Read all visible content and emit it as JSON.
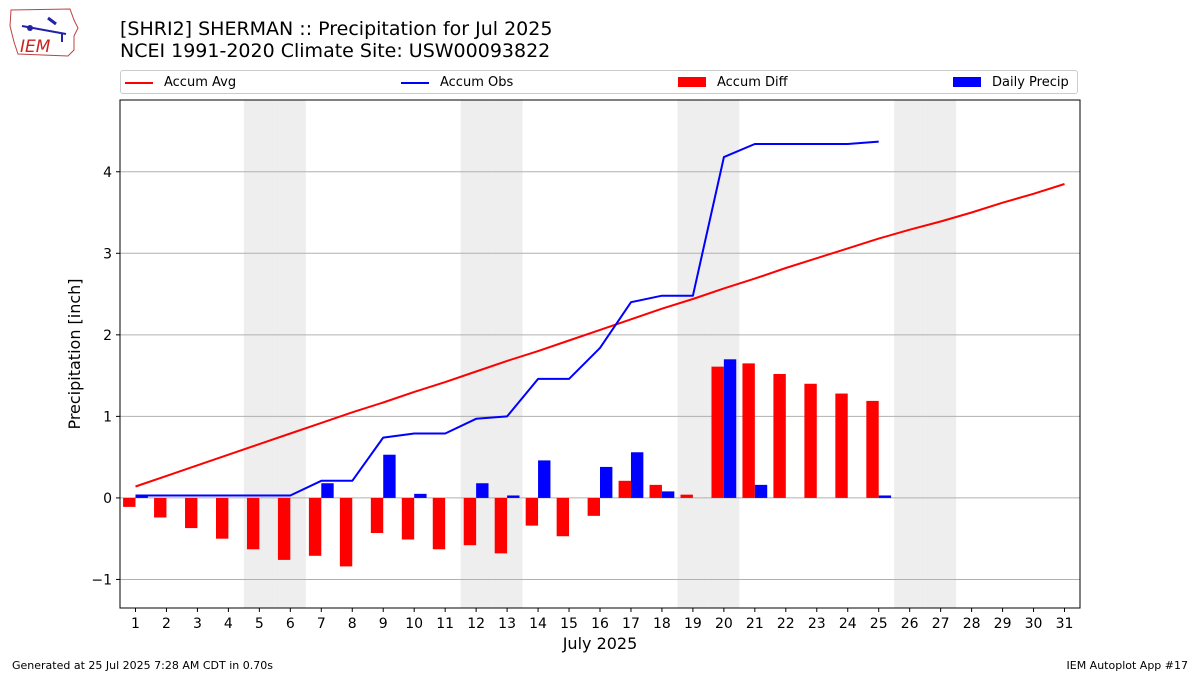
{
  "logo": {
    "text": "IEM"
  },
  "title": {
    "line1": "[SHRI2] SHERMAN :: Precipitation for Jul 2025",
    "line2": "NCEI 1991-2020 Climate Site: USW00093822"
  },
  "legend": {
    "items": [
      {
        "label": "Accum Avg",
        "kind": "line",
        "color": "#ff0000"
      },
      {
        "label": "Accum Obs",
        "kind": "line",
        "color": "#0000ff"
      },
      {
        "label": "Accum Diff",
        "kind": "bar",
        "color": "#ff0000"
      },
      {
        "label": "Daily Precip",
        "kind": "bar",
        "color": "#0000ff"
      }
    ]
  },
  "footer": {
    "left": "Generated at 25 Jul 2025 7:28 AM CDT in 0.70s",
    "right": "IEM Autoplot App #17"
  },
  "chart_data": {
    "type": "bar+line",
    "xlabel": "July 2025",
    "ylabel": "Precipitation [inch]",
    "xlim": [
      0.5,
      31.5
    ],
    "ylim": [
      -1.35,
      4.88
    ],
    "yticks": [
      -1,
      0,
      1,
      2,
      3,
      4
    ],
    "ytick_labels": [
      "−1",
      "0",
      "1",
      "2",
      "3",
      "4"
    ],
    "days": [
      1,
      2,
      3,
      4,
      5,
      6,
      7,
      8,
      9,
      10,
      11,
      12,
      13,
      14,
      15,
      16,
      17,
      18,
      19,
      20,
      21,
      22,
      23,
      24,
      25,
      26,
      27,
      28,
      29,
      30,
      31
    ],
    "weekend_days": [
      5,
      6,
      12,
      13,
      19,
      20,
      26,
      27
    ],
    "grid": "horizontal",
    "series": [
      {
        "name": "Accum Avg",
        "type": "line",
        "color": "#ff0000",
        "x": [
          1,
          2,
          3,
          4,
          5,
          6,
          7,
          8,
          9,
          10,
          11,
          12,
          13,
          14,
          15,
          16,
          17,
          18,
          19,
          20,
          21,
          22,
          23,
          24,
          25,
          26,
          27,
          28,
          29,
          30,
          31
        ],
        "values": [
          0.14,
          0.27,
          0.4,
          0.53,
          0.66,
          0.79,
          0.92,
          1.05,
          1.17,
          1.3,
          1.42,
          1.55,
          1.68,
          1.8,
          1.93,
          2.06,
          2.19,
          2.32,
          2.44,
          2.57,
          2.69,
          2.82,
          2.94,
          3.06,
          3.18,
          3.29,
          3.39,
          3.5,
          3.62,
          3.73,
          3.85
        ]
      },
      {
        "name": "Accum Obs",
        "type": "line",
        "color": "#0000ff",
        "x": [
          1,
          2,
          3,
          4,
          5,
          6,
          7,
          8,
          9,
          10,
          11,
          12,
          13,
          14,
          15,
          16,
          17,
          18,
          19,
          20,
          21,
          22,
          23,
          24,
          25
        ],
        "values": [
          0.03,
          0.03,
          0.03,
          0.03,
          0.03,
          0.03,
          0.21,
          0.21,
          0.74,
          0.79,
          0.79,
          0.97,
          1.0,
          1.46,
          1.46,
          1.84,
          2.4,
          2.48,
          2.48,
          4.18,
          4.34,
          4.34,
          4.34,
          4.34,
          4.37
        ]
      },
      {
        "name": "Accum Diff",
        "type": "bar",
        "color": "#ff0000",
        "x": [
          1,
          2,
          3,
          4,
          5,
          6,
          7,
          8,
          9,
          10,
          11,
          12,
          13,
          14,
          15,
          16,
          17,
          18,
          19,
          20,
          21,
          22,
          23,
          24,
          25
        ],
        "values": [
          -0.11,
          -0.24,
          -0.37,
          -0.5,
          -0.63,
          -0.76,
          -0.71,
          -0.84,
          -0.43,
          -0.51,
          -0.63,
          -0.58,
          -0.68,
          -0.34,
          -0.47,
          -0.22,
          0.21,
          0.16,
          0.04,
          1.61,
          1.65,
          1.52,
          1.4,
          1.28,
          1.19
        ]
      },
      {
        "name": "Daily Precip",
        "type": "bar",
        "color": "#0000ff",
        "x": [
          1,
          2,
          3,
          4,
          5,
          6,
          7,
          8,
          9,
          10,
          11,
          12,
          13,
          14,
          15,
          16,
          17,
          18,
          19,
          20,
          21,
          22,
          23,
          24,
          25
        ],
        "values": [
          0.03,
          0,
          0,
          0,
          0,
          0,
          0.18,
          0,
          0.53,
          0.05,
          0,
          0.18,
          0.03,
          0.46,
          0,
          0.38,
          0.56,
          0.08,
          0,
          1.7,
          0.16,
          0,
          0,
          0,
          0.03
        ]
      }
    ]
  }
}
